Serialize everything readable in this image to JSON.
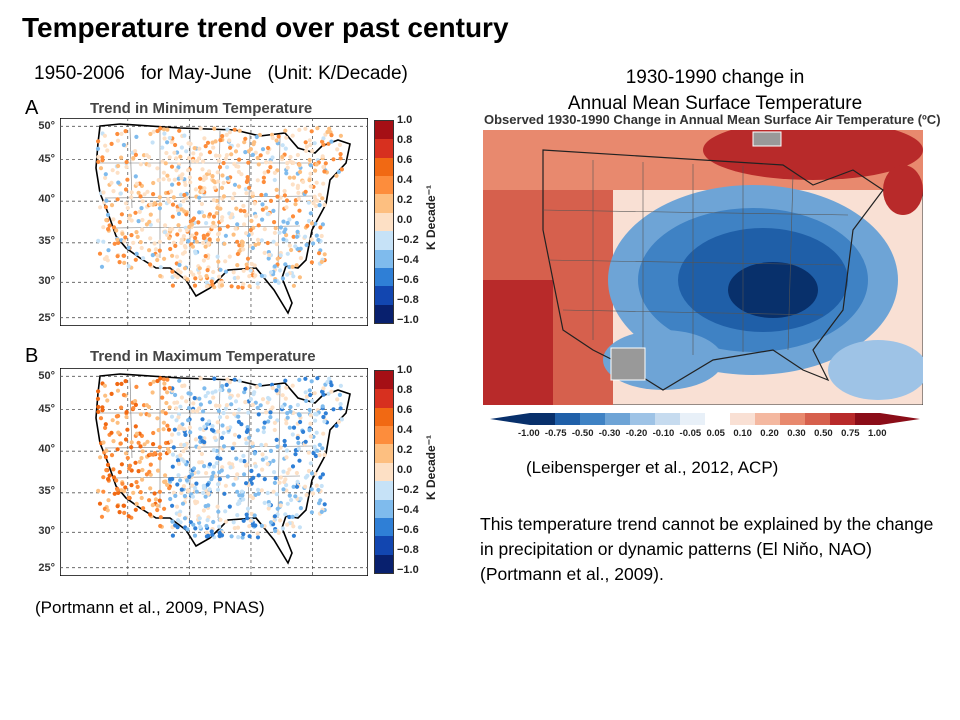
{
  "title": "Temperature trend over past century",
  "subtitle": {
    "period": "1950-2006",
    "season": "for May-June",
    "unit": "(Unit: K/Decade)"
  },
  "right_caption": {
    "line1": "1930-1990 change in",
    "line2": "Annual Mean Surface Temperature"
  },
  "panel_a": {
    "letter": "A",
    "title": "Trend in Minimum Temperature"
  },
  "panel_b": {
    "letter": "B",
    "title": "Trend in Maximum Temperature"
  },
  "lat_ticks": [
    "50°",
    "45°",
    "40°",
    "35°",
    "30°",
    "25°"
  ],
  "colorbar": {
    "title": "K Decade⁻¹",
    "labels": [
      "1.0",
      "0.8",
      "0.6",
      "0.4",
      "0.2",
      "0.0",
      "−0.2",
      "−0.4",
      "−0.6",
      "−0.8",
      "−1.0"
    ],
    "colors": [
      "#a50f15",
      "#d7301f",
      "#f16913",
      "#fd8d3c",
      "#fdbf80",
      "#fde0c5",
      "#c6e2f7",
      "#7fbbed",
      "#2f7fd6",
      "#1246b0",
      "#08206e"
    ]
  },
  "right_map_title": "Observed 1930-1990 Change in Annual Mean Surface Air Temperature (ºC)",
  "right_colorbar": {
    "labels": [
      "-1.00",
      "-0.75",
      "-0.50",
      "-0.30",
      "-0.20",
      "-0.10",
      "-0.05",
      "0.05",
      "0.10",
      "0.20",
      "0.30",
      "0.50",
      "0.75",
      "1.00"
    ],
    "colors": [
      "#08306b",
      "#1f5fa8",
      "#3f82c4",
      "#6ea4d6",
      "#9ec3e6",
      "#c6dbef",
      "#e8f0f8",
      "#ffffff",
      "#f9e0d4",
      "#f4b8a0",
      "#e8896e",
      "#d6604d",
      "#b82a2a",
      "#8b0d18"
    ]
  },
  "cite_left": "(Portmann et al., 2009, PNAS)",
  "cite_right": "(Leibensperger et al., 2012, ACP)",
  "note": "This temperature trend cannot be explained by the change in precipitation or dynamic patterns (El Niňo, NAO) (Portmann et al., 2009)."
}
